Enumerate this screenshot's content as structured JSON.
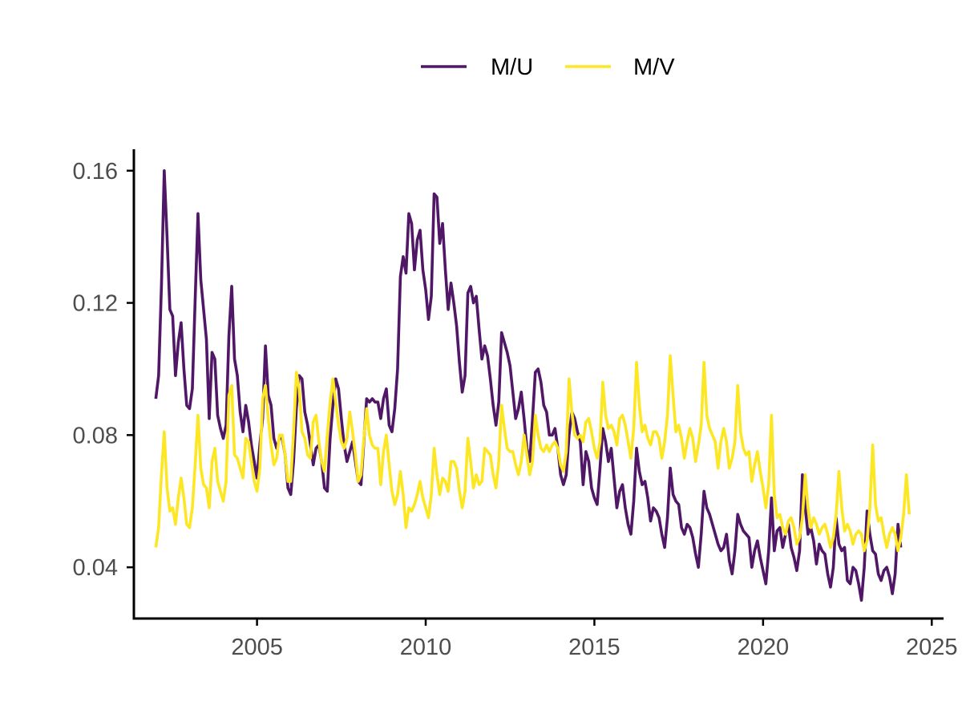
{
  "chart_data": {
    "type": "line",
    "title": "",
    "xlabel": "",
    "ylabel": "",
    "xlim": [
      2001.35,
      2025.35
    ],
    "ylim": [
      0.0245,
      0.1665
    ],
    "x_ticks": [
      2005,
      2010,
      2015,
      2020,
      2025
    ],
    "x_tick_labels": [
      "2005",
      "2010",
      "2015",
      "2020",
      "2025"
    ],
    "y_ticks": [
      0.04,
      0.08,
      0.12,
      0.16
    ],
    "y_tick_labels": [
      "0.04",
      "0.08",
      "0.12",
      "0.16"
    ],
    "grid": false,
    "legend_position": "top",
    "x_start": 2002.0,
    "x_step": 0.08333,
    "series": [
      {
        "name": "M/U",
        "color": "#4f1766",
        "values": [
          0.091,
          0.098,
          0.125,
          0.16,
          0.14,
          0.118,
          0.116,
          0.098,
          0.108,
          0.114,
          0.1,
          0.089,
          0.088,
          0.094,
          0.121,
          0.147,
          0.127,
          0.118,
          0.109,
          0.085,
          0.105,
          0.103,
          0.086,
          0.082,
          0.079,
          0.083,
          0.11,
          0.125,
          0.103,
          0.098,
          0.087,
          0.081,
          0.089,
          0.084,
          0.077,
          0.072,
          0.067,
          0.077,
          0.085,
          0.107,
          0.092,
          0.089,
          0.079,
          0.076,
          0.079,
          0.079,
          0.074,
          0.064,
          0.062,
          0.072,
          0.088,
          0.098,
          0.097,
          0.087,
          0.083,
          0.077,
          0.071,
          0.076,
          0.077,
          0.072,
          0.064,
          0.063,
          0.079,
          0.089,
          0.097,
          0.094,
          0.085,
          0.077,
          0.072,
          0.075,
          0.078,
          0.072,
          0.066,
          0.065,
          0.078,
          0.091,
          0.09,
          0.091,
          0.09,
          0.09,
          0.085,
          0.091,
          0.094,
          0.083,
          0.081,
          0.088,
          0.1,
          0.128,
          0.134,
          0.129,
          0.147,
          0.144,
          0.13,
          0.139,
          0.142,
          0.13,
          0.124,
          0.115,
          0.122,
          0.153,
          0.152,
          0.138,
          0.144,
          0.13,
          0.118,
          0.126,
          0.12,
          0.113,
          0.102,
          0.093,
          0.098,
          0.123,
          0.125,
          0.12,
          0.122,
          0.112,
          0.103,
          0.107,
          0.104,
          0.097,
          0.089,
          0.083,
          0.09,
          0.111,
          0.108,
          0.105,
          0.101,
          0.093,
          0.085,
          0.088,
          0.093,
          0.085,
          0.076,
          0.072,
          0.085,
          0.099,
          0.1,
          0.096,
          0.089,
          0.087,
          0.08,
          0.08,
          0.082,
          0.076,
          0.068,
          0.065,
          0.068,
          0.08,
          0.087,
          0.085,
          0.081,
          0.078,
          0.065,
          0.075,
          0.072,
          0.064,
          0.061,
          0.059,
          0.07,
          0.082,
          0.078,
          0.072,
          0.076,
          0.067,
          0.058,
          0.063,
          0.065,
          0.058,
          0.053,
          0.05,
          0.06,
          0.076,
          0.069,
          0.065,
          0.066,
          0.061,
          0.054,
          0.058,
          0.057,
          0.055,
          0.05,
          0.046,
          0.055,
          0.07,
          0.062,
          0.06,
          0.059,
          0.052,
          0.05,
          0.053,
          0.052,
          0.049,
          0.044,
          0.04,
          0.05,
          0.063,
          0.058,
          0.056,
          0.053,
          0.05,
          0.047,
          0.045,
          0.046,
          0.05,
          0.042,
          0.038,
          0.045,
          0.056,
          0.053,
          0.051,
          0.05,
          0.049,
          0.04,
          0.045,
          0.048,
          0.043,
          0.039,
          0.035,
          0.045,
          0.061,
          0.045,
          0.051,
          0.052,
          0.046,
          0.05,
          0.053,
          0.046,
          0.043,
          0.039,
          0.045,
          0.068,
          0.058,
          0.05,
          0.052,
          0.048,
          0.041,
          0.047,
          0.045,
          0.044,
          0.038,
          0.034,
          0.04,
          0.055,
          0.047,
          0.045,
          0.046,
          0.036,
          0.035,
          0.04,
          0.039,
          0.035,
          0.03,
          0.04,
          0.057,
          0.05,
          0.045,
          0.044,
          0.038,
          0.036,
          0.039,
          0.04,
          0.037,
          0.032,
          0.038,
          0.053,
          0.046
        ]
      },
      {
        "name": "M/V",
        "color": "#fde725",
        "values": [
          0.046,
          0.052,
          0.068,
          0.081,
          0.064,
          0.057,
          0.058,
          0.053,
          0.061,
          0.067,
          0.061,
          0.053,
          0.052,
          0.058,
          0.071,
          0.086,
          0.07,
          0.065,
          0.064,
          0.058,
          0.072,
          0.076,
          0.066,
          0.063,
          0.06,
          0.066,
          0.092,
          0.095,
          0.074,
          0.073,
          0.07,
          0.067,
          0.079,
          0.078,
          0.072,
          0.066,
          0.063,
          0.07,
          0.091,
          0.095,
          0.085,
          0.077,
          0.071,
          0.073,
          0.08,
          0.08,
          0.074,
          0.066,
          0.066,
          0.081,
          0.099,
          0.094,
          0.081,
          0.079,
          0.074,
          0.073,
          0.084,
          0.086,
          0.078,
          0.072,
          0.069,
          0.08,
          0.09,
          0.097,
          0.09,
          0.083,
          0.078,
          0.076,
          0.079,
          0.087,
          0.081,
          0.074,
          0.066,
          0.068,
          0.079,
          0.088,
          0.08,
          0.077,
          0.076,
          0.076,
          0.065,
          0.075,
          0.08,
          0.071,
          0.063,
          0.059,
          0.062,
          0.069,
          0.062,
          0.052,
          0.058,
          0.057,
          0.059,
          0.062,
          0.066,
          0.061,
          0.058,
          0.055,
          0.062,
          0.076,
          0.068,
          0.062,
          0.067,
          0.066,
          0.063,
          0.072,
          0.072,
          0.07,
          0.063,
          0.058,
          0.063,
          0.079,
          0.072,
          0.064,
          0.068,
          0.065,
          0.066,
          0.076,
          0.075,
          0.074,
          0.068,
          0.064,
          0.072,
          0.089,
          0.082,
          0.076,
          0.075,
          0.075,
          0.071,
          0.068,
          0.072,
          0.08,
          0.074,
          0.068,
          0.072,
          0.086,
          0.08,
          0.076,
          0.075,
          0.077,
          0.075,
          0.077,
          0.078,
          0.076,
          0.071,
          0.069,
          0.075,
          0.097,
          0.087,
          0.08,
          0.079,
          0.08,
          0.078,
          0.084,
          0.085,
          0.081,
          0.076,
          0.073,
          0.078,
          0.096,
          0.086,
          0.082,
          0.083,
          0.081,
          0.077,
          0.085,
          0.086,
          0.083,
          0.078,
          0.073,
          0.082,
          0.102,
          0.089,
          0.081,
          0.083,
          0.079,
          0.077,
          0.081,
          0.081,
          0.079,
          0.073,
          0.078,
          0.086,
          0.104,
          0.092,
          0.081,
          0.083,
          0.079,
          0.073,
          0.078,
          0.082,
          0.079,
          0.072,
          0.077,
          0.083,
          0.102,
          0.086,
          0.082,
          0.08,
          0.078,
          0.07,
          0.078,
          0.082,
          0.078,
          0.07,
          0.073,
          0.078,
          0.095,
          0.081,
          0.076,
          0.074,
          0.075,
          0.066,
          0.071,
          0.075,
          0.069,
          0.064,
          0.058,
          0.065,
          0.086,
          0.062,
          0.055,
          0.056,
          0.052,
          0.05,
          0.054,
          0.055,
          0.052,
          0.047,
          0.049,
          0.055,
          0.068,
          0.058,
          0.052,
          0.055,
          0.053,
          0.05,
          0.052,
          0.053,
          0.05,
          0.046,
          0.049,
          0.056,
          0.069,
          0.058,
          0.051,
          0.053,
          0.051,
          0.047,
          0.05,
          0.051,
          0.05,
          0.045,
          0.048,
          0.058,
          0.077,
          0.059,
          0.054,
          0.055,
          0.05,
          0.046,
          0.05,
          0.052,
          0.05,
          0.045,
          0.049,
          0.056,
          0.068,
          0.056
        ]
      }
    ]
  }
}
